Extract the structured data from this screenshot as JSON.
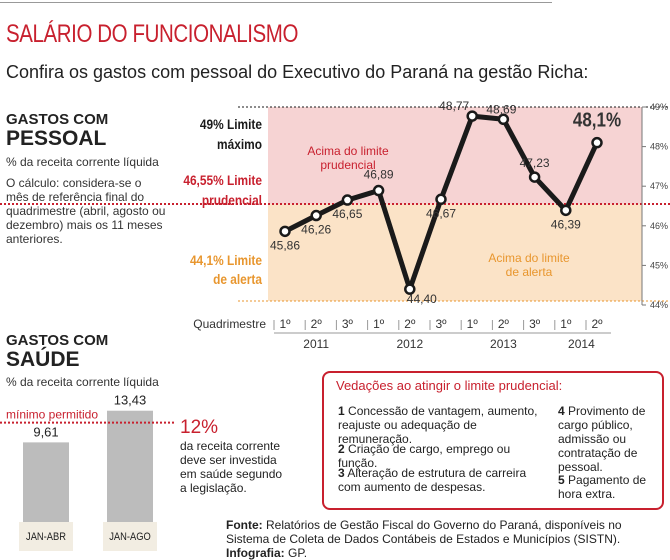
{
  "title": "SALÁRIO DO FUNCIONALISMO",
  "subtitle": "Confira os gastos com pessoal do Executivo do Paraná na gestão Richa:",
  "pessoal": {
    "heading_a": "GASTOS COM",
    "heading_b": "PESSOAL",
    "unit": "% da receita corrente líquida",
    "note": "O cálculo: considera-se o mês de referência final do quadrimestre (abril, agosto ou dezembro) mais os 11 meses anteriores."
  },
  "saude": {
    "heading_a": "GASTOS COM",
    "heading_b": "SAÚDE",
    "unit": "% da receita corrente líquida",
    "min_label": "mínimo permitido",
    "big_pct": "12%",
    "caption": "da receita corrente deve ser investida em saúde segundo a legislação."
  },
  "vedacoes": {
    "title": "Vedações ao atingir o limite prudencial:",
    "items": [
      {
        "num": "1",
        "text": "Concessão de vantagem, aumento, reajuste ou adequação de remuneração."
      },
      {
        "num": "2",
        "text": "Criação de cargo, emprego ou função."
      },
      {
        "num": "3",
        "text": "Alteração de estrutura de carreira com aumento de despesas."
      },
      {
        "num": "4",
        "text": "Provimento de cargo público, admissão ou contratação de pessoal."
      },
      {
        "num": "5",
        "text": "Pagamento de hora extra."
      }
    ]
  },
  "source": {
    "label": "Fonte:",
    "text": "Relatórios de Gestão Fiscal do Governo do Paraná, disponíveis no Sistema de Coleta de Dados Contábeis de Estados e Municípios (SISTN).",
    "infografia_label": "Infografia:",
    "infografia_value": "GP."
  },
  "colors": {
    "red": "#c8202e",
    "pink_zone": "#f6d3d3",
    "orange_zone": "#fbe3c7",
    "orange_text": "#e8962e",
    "line": "#1a1a1a",
    "bar": "#bcbcbc"
  },
  "chart_data": [
    {
      "type": "line",
      "title": "GASTOS COM PESSOAL",
      "ylabel": "% da receita corrente líquida",
      "xlabel": "Quadrimestre",
      "ylim": [
        44,
        49
      ],
      "ytick_labels": [
        "49%",
        "48%",
        "47%",
        "46%",
        "45%",
        "44%"
      ],
      "yticks": [
        49,
        48,
        47,
        46,
        45,
        44
      ],
      "quadrimestres": [
        "1º",
        "2º",
        "3º",
        "1º",
        "2º",
        "3º",
        "1º",
        "2º",
        "3º",
        "1º",
        "2º"
      ],
      "years": [
        {
          "label": "2011",
          "span": 3
        },
        {
          "label": "2012",
          "span": 3
        },
        {
          "label": "2013",
          "span": 3
        },
        {
          "label": "2014",
          "span": 2
        }
      ],
      "values": [
        45.86,
        46.26,
        46.65,
        46.89,
        44.4,
        46.67,
        48.77,
        48.69,
        47.23,
        46.39,
        48.1
      ],
      "value_labels": [
        "45,86",
        "46,26",
        "46,65",
        "46,89",
        "44,40",
        "46,67",
        "48,77",
        "48,69",
        "47,23",
        "46,39",
        "48,1%"
      ],
      "thresholds": [
        {
          "value": 49,
          "label_a": "49% Limite",
          "label_b": "máximo"
        },
        {
          "value": 46.55,
          "label_a": "46,55% Limite",
          "label_b": "prudencial"
        },
        {
          "value": 44.1,
          "label_a": "44,1% Limite",
          "label_b": "de alerta"
        }
      ],
      "zone_labels": {
        "prudencial_a": "Acima do limite",
        "prudencial_b": "prudencial",
        "alerta_a": "Acima do limite",
        "alerta_b": "de alerta"
      }
    },
    {
      "type": "bar",
      "title": "GASTOS COM SAÚDE",
      "categories": [
        "JAN-ABR",
        "JAN-AGO"
      ],
      "values": [
        9.61,
        13.43
      ],
      "value_labels": [
        "9,61",
        "13,43"
      ],
      "threshold": 12,
      "threshold_label": "mínimo permitido",
      "ylim": [
        0,
        14
      ]
    }
  ]
}
